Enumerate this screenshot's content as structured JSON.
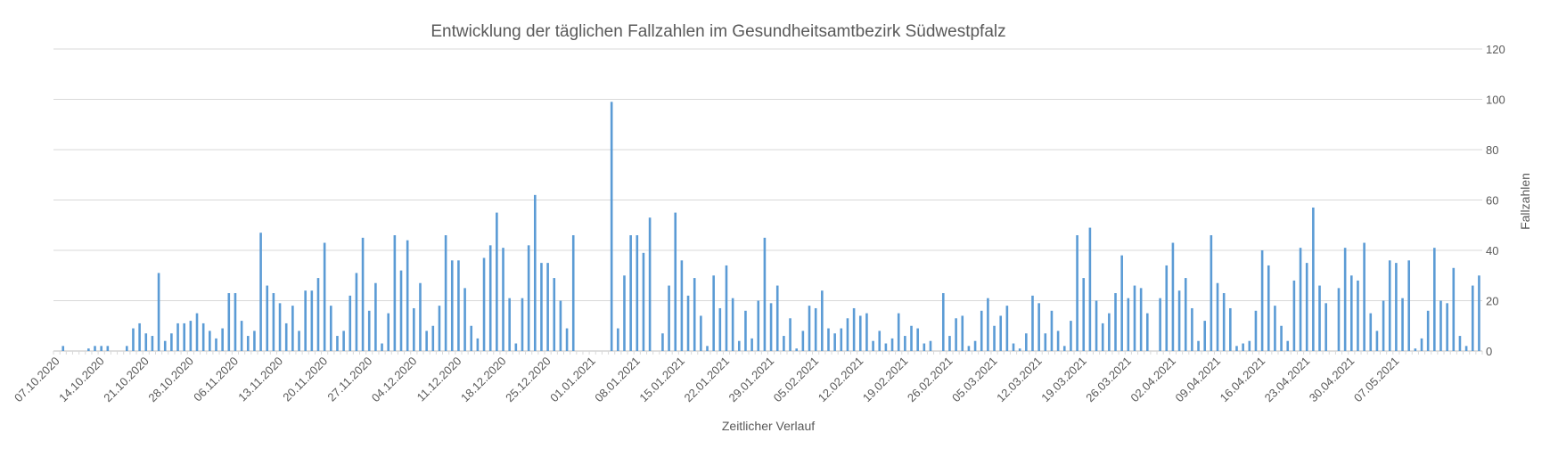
{
  "chart_data": {
    "type": "bar",
    "title": "Entwicklung der täglichen Fallzahlen im Gesundheitsamtbezirk Südwestpfalz",
    "xlabel": "Zeitlicher Verlauf",
    "ylabel": "Fallzahlen",
    "ylim": [
      0,
      120
    ],
    "yticks": [
      0,
      20,
      40,
      60,
      80,
      100,
      120
    ],
    "y_axis_side": "right",
    "grid": true,
    "legend": "none",
    "bar_color": "#5b9bd5",
    "x_start": "07.10.2020",
    "x_end": "13.05.2021",
    "x_tick_labels": [
      "07.10.2020",
      "14.10.2020",
      "21.10.2020",
      "28.10.2020",
      "06.11.2020",
      "13.11.2020",
      "20.11.2020",
      "27.11.2020",
      "04.12.2020",
      "11.12.2020",
      "18.12.2020",
      "25.12.2020",
      "01.01.2021",
      "08.01.2021",
      "15.01.2021",
      "22.01.2021",
      "29.01.2021",
      "05.02.2021",
      "12.02.2021",
      "19.02.2021",
      "26.02.2021",
      "05.03.2021",
      "12.03.2021",
      "19.03.2021",
      "26.03.2021",
      "02.04.2021",
      "09.04.2021",
      "16.04.2021",
      "23.04.2021",
      "30.04.2021",
      "07.05.2021"
    ],
    "values": [
      0,
      2,
      0,
      0,
      0,
      1,
      2,
      2,
      2,
      0,
      0,
      2,
      9,
      11,
      7,
      6,
      31,
      4,
      7,
      11,
      11,
      12,
      15,
      11,
      8,
      5,
      9,
      23,
      23,
      12,
      6,
      8,
      47,
      26,
      23,
      19,
      11,
      18,
      8,
      24,
      24,
      29,
      43,
      18,
      6,
      8,
      22,
      31,
      45,
      16,
      27,
      3,
      15,
      46,
      32,
      44,
      17,
      27,
      8,
      10,
      18,
      46,
      36,
      36,
      25,
      10,
      5,
      37,
      42,
      55,
      41,
      21,
      3,
      21,
      42,
      62,
      35,
      35,
      29,
      20,
      9,
      46,
      0,
      0,
      0,
      0,
      0,
      99,
      9,
      30,
      46,
      46,
      39,
      53,
      0,
      7,
      26,
      55,
      36,
      22,
      29,
      14,
      2,
      30,
      17,
      34,
      21,
      4,
      16,
      5,
      20,
      45,
      19,
      26,
      6,
      13,
      1,
      8,
      18,
      17,
      24,
      9,
      7,
      9,
      13,
      17,
      14,
      15,
      4,
      8,
      3,
      5,
      15,
      6,
      10,
      9,
      3,
      4,
      0,
      23,
      6,
      13,
      14,
      2,
      4,
      16,
      21,
      10,
      14,
      18,
      3,
      1,
      7,
      22,
      19,
      7,
      16,
      8,
      2,
      12,
      46,
      29,
      49,
      20,
      11,
      15,
      23,
      38,
      21,
      26,
      25,
      15,
      0,
      21,
      34,
      43,
      24,
      29,
      17,
      4,
      12,
      46,
      27,
      23,
      17,
      2,
      3,
      4,
      16,
      40,
      34,
      18,
      10,
      4,
      28,
      41,
      35,
      57,
      26,
      19,
      0,
      25,
      41,
      30,
      28,
      43,
      15,
      8,
      20,
      36,
      35,
      21,
      36,
      1,
      5,
      16,
      41,
      20,
      19,
      33,
      6,
      2,
      26,
      30
    ]
  }
}
